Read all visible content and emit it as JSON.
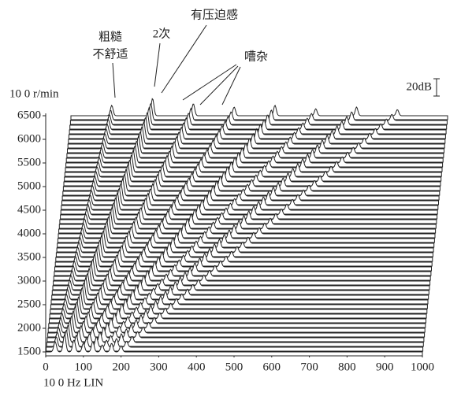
{
  "chart_data": {
    "type": "waterfall",
    "ylabel": "10 0 r/min",
    "xlabel": "10 0 Hz LIN",
    "scale_label": "20dB",
    "annotations": [
      "有压迫感",
      "粗糙",
      "不舒适",
      "2次",
      "嘈杂"
    ],
    "rpm": [
      1500,
      1600,
      1700,
      1800,
      1900,
      2000,
      2100,
      2200,
      2300,
      2400,
      2500,
      2600,
      2700,
      2800,
      2900,
      3000,
      3100,
      3200,
      3300,
      3400,
      3500,
      3600,
      3700,
      3800,
      3900,
      4000,
      4100,
      4200,
      4300,
      4400,
      4500,
      4600,
      4700,
      4800,
      4900,
      5000,
      5100,
      5200,
      5300,
      5400,
      5500,
      5600,
      5700,
      5800,
      5900,
      6000,
      6100,
      6200,
      6300,
      6400,
      6500
    ],
    "orders": [
      1,
      2,
      3,
      4,
      5,
      6,
      7,
      8
    ],
    "amplitudes": [
      12,
      20,
      14,
      10,
      12,
      8,
      10,
      7
    ],
    "scale_db": 20,
    "xlim": [
      0,
      1000
    ],
    "xticks": [
      0,
      100,
      200,
      300,
      400,
      500,
      600,
      700,
      800,
      900,
      1000
    ],
    "ylim": [
      1500,
      6500
    ],
    "yticks": [
      1500,
      2000,
      2500,
      3000,
      3500,
      4000,
      4500,
      5000,
      5500,
      6000,
      6500
    ],
    "color": "#222222"
  }
}
